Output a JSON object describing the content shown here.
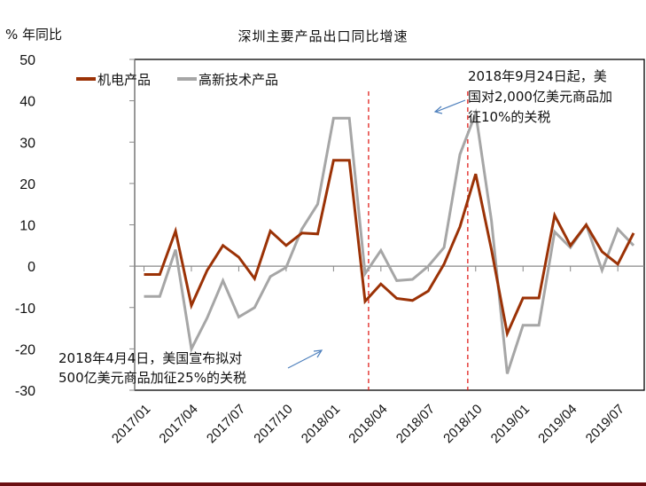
{
  "header": {
    "unit_label": "% 年同比",
    "title": "深圳主要产品出口同比增速"
  },
  "legend": [
    {
      "label": "机电产品",
      "color": "#9b3206"
    },
    {
      "label": "高新技术产品",
      "color": "#a6a6a6"
    }
  ],
  "annotations": [
    {
      "lines": [
        "2018年9月24日起，美",
        "国对2,000亿美元商品加",
        "征10%的关税"
      ],
      "target": "2018/09 line"
    },
    {
      "lines": [
        "2018年4月4日，美国宣布拟对",
        "500亿美元商品加征25%的关税"
      ],
      "target": "2018/04 line"
    }
  ],
  "chart_data": {
    "type": "line",
    "title": "深圳主要产品出口同比增速",
    "xlabel": "",
    "ylabel": "% 年同比",
    "ylim": [
      -30,
      50
    ],
    "yticks": [
      50,
      40,
      30,
      20,
      10,
      0,
      -10,
      -20,
      -30
    ],
    "xtick_labels": [
      "2017/01",
      "2017/04",
      "2017/07",
      "2017/10",
      "2018/01",
      "2018/04",
      "2018/07",
      "2018/10",
      "2019/01",
      "2019/04",
      "2019/07"
    ],
    "legend_position": "top-left inside",
    "grid": false,
    "x": [
      "2017/01",
      "2017/02",
      "2017/03",
      "2017/04",
      "2017/05",
      "2017/06",
      "2017/07",
      "2017/08",
      "2017/09",
      "2017/10",
      "2017/11",
      "2017/12",
      "2018/01",
      "2018/02",
      "2018/03",
      "2018/04",
      "2018/05",
      "2018/06",
      "2018/07",
      "2018/08",
      "2018/09",
      "2018/10",
      "2018/11",
      "2018/12",
      "2019/01",
      "2019/02",
      "2019/03",
      "2019/04",
      "2019/05",
      "2019/06",
      "2019/07",
      "2019/08"
    ],
    "series": [
      {
        "name": "机电产品",
        "color": "#9b3206",
        "values": [
          -2,
          -2,
          8.5,
          -9.5,
          -1,
          5,
          2.2,
          -3,
          8.5,
          5,
          8,
          7.8,
          25.6,
          25.6,
          -8.5,
          -4.3,
          -7.8,
          -8.3,
          -6,
          0.5,
          9.5,
          22.3,
          4,
          -16.3,
          -7.7,
          -7.7,
          12.3,
          5,
          10,
          3.5,
          0.5,
          8
        ]
      },
      {
        "name": "高新技术产品",
        "color": "#a6a6a6",
        "values": [
          -7.3,
          -7.3,
          4,
          -20,
          -12.5,
          -3.5,
          -12.3,
          -10,
          -2.5,
          -0.3,
          9,
          15,
          35.8,
          35.8,
          -1.8,
          3.8,
          -3.5,
          -3.2,
          0,
          4.5,
          27,
          37,
          11,
          -26,
          -14.3,
          -14.3,
          8.3,
          4.5,
          10,
          -1,
          9,
          5
        ]
      }
    ],
    "reference_lines": [
      {
        "x_between": [
          "2018/03",
          "2018/04"
        ],
        "style": "red dashed",
        "note": "2018年4月4日"
      },
      {
        "x_between": [
          "2018/09",
          "2018/10"
        ],
        "style": "red dashed",
        "note": "2018年9月24日"
      }
    ]
  }
}
